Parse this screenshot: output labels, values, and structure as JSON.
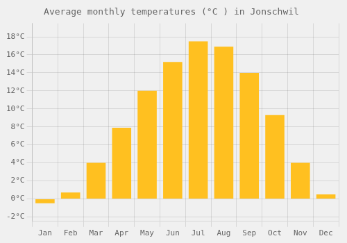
{
  "chart_data": {
    "type": "bar",
    "title": "Average monthly temperatures (°C ) in Jonschwil",
    "categories": [
      "Jan",
      "Feb",
      "Mar",
      "Apr",
      "May",
      "Jun",
      "Jul",
      "Aug",
      "Sep",
      "Oct",
      "Nov",
      "Dec"
    ],
    "values": [
      -0.5,
      0.7,
      4.0,
      7.9,
      12.0,
      15.2,
      17.5,
      16.9,
      14.0,
      9.3,
      4.0,
      0.5
    ],
    "color": "#FFC020",
    "ylim": [
      -2.5,
      19.5
    ],
    "yticks": [
      {
        "value": -2,
        "label": "-2°C"
      },
      {
        "value": 0,
        "label": "0°C"
      },
      {
        "value": 2,
        "label": "2°C"
      },
      {
        "value": 4,
        "label": "4°C"
      },
      {
        "value": 6,
        "label": "6°C"
      },
      {
        "value": 8,
        "label": "8°C"
      },
      {
        "value": 10,
        "label": "10°C"
      },
      {
        "value": 12,
        "label": "12°C"
      },
      {
        "value": 14,
        "label": "14°C"
      },
      {
        "value": 16,
        "label": "16°C"
      },
      {
        "value": 18,
        "label": "18°C"
      }
    ],
    "grid": true
  }
}
